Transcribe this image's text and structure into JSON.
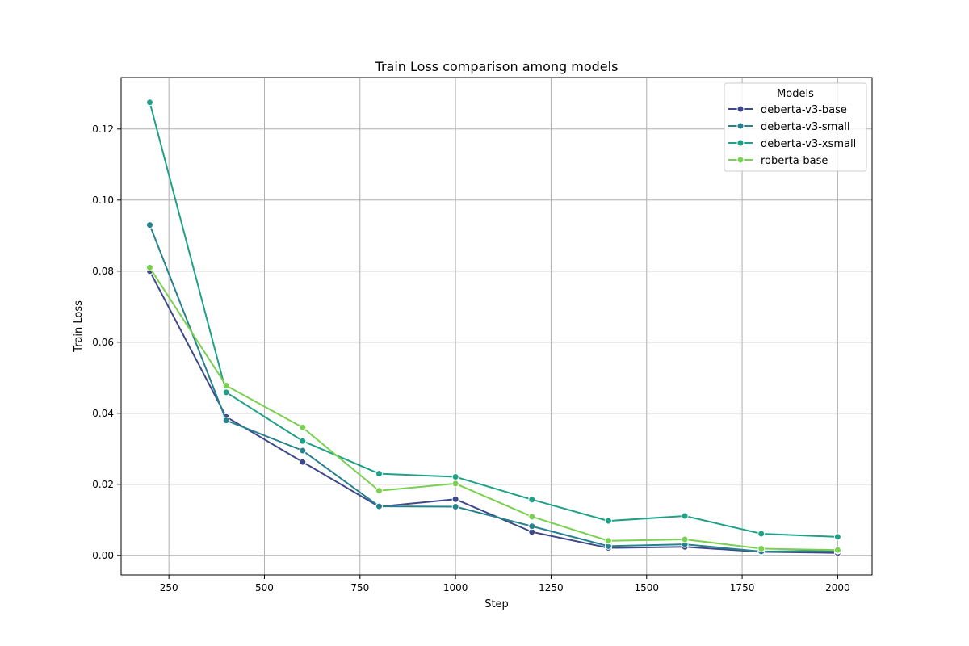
{
  "chart_data": {
    "type": "line",
    "title": "Train Loss comparison among models",
    "xlabel": "Step",
    "ylabel": "Train Loss",
    "xlim": [
      125,
      2090
    ],
    "ylim": [
      -0.0055,
      0.1345
    ],
    "xticks": [
      250,
      500,
      750,
      1000,
      1250,
      1500,
      1750,
      2000
    ],
    "yticks": [
      0.0,
      0.02,
      0.04,
      0.06,
      0.08,
      0.1,
      0.12
    ],
    "ytick_labels": [
      "0.00",
      "0.02",
      "0.04",
      "0.06",
      "0.08",
      "0.10",
      "0.12"
    ],
    "grid": true,
    "legend": {
      "title": "Models",
      "position": "top-right"
    },
    "x": [
      200,
      400,
      600,
      800,
      1000,
      1200,
      1400,
      1600,
      1800,
      2000
    ],
    "series": [
      {
        "name": "deberta-v3-base",
        "color": "#3e4989",
        "values": [
          0.08,
          0.039,
          0.0263,
          0.0137,
          0.0158,
          0.0066,
          0.0021,
          0.0024,
          0.001,
          0.0007
        ]
      },
      {
        "name": "deberta-v3-small",
        "color": "#26828e",
        "values": [
          0.093,
          0.038,
          0.0295,
          0.0138,
          0.0137,
          0.0082,
          0.0026,
          0.0031,
          0.0011,
          0.0013
        ]
      },
      {
        "name": "deberta-v3-xsmall",
        "color": "#1fa187",
        "values": [
          0.1275,
          0.0459,
          0.0322,
          0.023,
          0.0221,
          0.0157,
          0.0097,
          0.0111,
          0.0061,
          0.0052
        ]
      },
      {
        "name": "roberta-base",
        "color": "#7ad151",
        "values": [
          0.081,
          0.0478,
          0.036,
          0.0182,
          0.0202,
          0.0109,
          0.0041,
          0.0045,
          0.0019,
          0.0015
        ]
      }
    ]
  }
}
